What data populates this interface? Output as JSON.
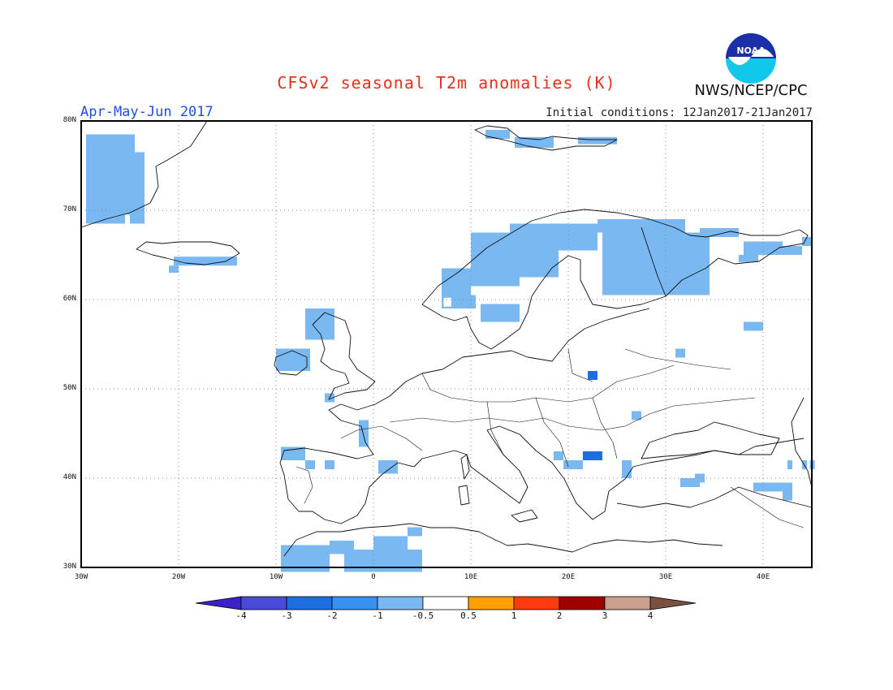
{
  "header": {
    "title": "CFSv2 seasonal T2m anomalies (K)",
    "season": "Apr-May-Jun 2017",
    "initial_conditions": "Initial conditions: 12Jan2017-21Jan2017",
    "agency": "NWS/NCEP/CPC",
    "logo_text": "NOAA",
    "logo_icon": "noaa-logo-icon"
  },
  "map": {
    "projection": "lat-lon",
    "lon_range": [
      -30,
      45
    ],
    "lat_range": [
      30,
      80
    ],
    "lat_labels": [
      "80N",
      "70N",
      "60N",
      "50N",
      "40N",
      "30N"
    ],
    "lon_labels": [
      "30W",
      "20W",
      "10W",
      "0",
      "10E",
      "20E",
      "30E",
      "40E"
    ],
    "grid": "dotted"
  },
  "anomaly_cells": [
    {
      "lon": -29.5,
      "lat": 78.5,
      "w": 5,
      "h": 9,
      "bin": 4
    },
    {
      "lon": -29.5,
      "lat": 69.5,
      "w": 4,
      "h": 1,
      "bin": 4
    },
    {
      "lon": -25,
      "lat": 76.5,
      "w": 1.5,
      "h": 8,
      "bin": 4
    },
    {
      "lon": -23.5,
      "lat": 66.0,
      "w": 1.5,
      "h": 0.5,
      "bin": 5
    },
    {
      "lon": -20,
      "lat": 65.8,
      "w": 6,
      "h": 1,
      "bin": 5
    },
    {
      "lon": -20.5,
      "lat": 64.8,
      "w": 6.5,
      "h": 1.0,
      "bin": 4
    },
    {
      "lon": -21,
      "lat": 63.8,
      "w": 1,
      "h": 0.8,
      "bin": 4
    },
    {
      "lon": -7,
      "lat": 59.0,
      "w": 3,
      "h": 3.5,
      "bin": 4
    },
    {
      "lon": -10,
      "lat": 54.5,
      "w": 3.5,
      "h": 2.5,
      "bin": 4
    },
    {
      "lon": 7,
      "lat": 63.5,
      "w": 3,
      "h": 3.5,
      "bin": 4
    },
    {
      "lon": 10,
      "lat": 67.5,
      "w": 5,
      "h": 6,
      "bin": 4
    },
    {
      "lon": 14,
      "lat": 68.5,
      "w": 9,
      "h": 3,
      "bin": 4
    },
    {
      "lon": 15,
      "lat": 65.5,
      "w": 4,
      "h": 3,
      "bin": 4
    },
    {
      "lon": 23,
      "lat": 69.0,
      "w": 9,
      "h": 1.5,
      "bin": 4
    },
    {
      "lon": 23.5,
      "lat": 67.5,
      "w": 11,
      "h": 7,
      "bin": 4
    },
    {
      "lon": 33.5,
      "lat": 68.0,
      "w": 4,
      "h": 1,
      "bin": 4
    },
    {
      "lon": 7,
      "lat": 60.5,
      "w": 3.5,
      "h": 1.5,
      "bin": 4
    },
    {
      "lon": 7.2,
      "lat": 60.2,
      "w": 0.8,
      "h": 1.0,
      "bin": 5
    },
    {
      "lon": 11,
      "lat": 59.5,
      "w": 4,
      "h": 2,
      "bin": 4
    },
    {
      "lon": 11.5,
      "lat": 79.0,
      "w": 2.5,
      "h": 1,
      "bin": 4
    },
    {
      "lon": 14.5,
      "lat": 78.2,
      "w": 4,
      "h": 1.2,
      "bin": 4
    },
    {
      "lon": 21,
      "lat": 78.2,
      "w": 4,
      "h": 0.8,
      "bin": 4
    },
    {
      "lon": 38,
      "lat": 66.5,
      "w": 4,
      "h": 1.5,
      "bin": 4
    },
    {
      "lon": 42,
      "lat": 66.0,
      "w": 2,
      "h": 1,
      "bin": 4
    },
    {
      "lon": 44,
      "lat": 67.0,
      "w": 1,
      "h": 1,
      "bin": 4
    },
    {
      "lon": 37.5,
      "lat": 65.0,
      "w": 2,
      "h": 0.8,
      "bin": 4
    },
    {
      "lon": 38,
      "lat": 57.5,
      "w": 2,
      "h": 1,
      "bin": 4
    },
    {
      "lon": 31,
      "lat": 54.5,
      "w": 1,
      "h": 1,
      "bin": 4
    },
    {
      "lon": -5,
      "lat": 49.5,
      "w": 1,
      "h": 1,
      "bin": 4
    },
    {
      "lon": 26.5,
      "lat": 47.5,
      "w": 1,
      "h": 1,
      "bin": 4
    },
    {
      "lon": -1.5,
      "lat": 46.5,
      "w": 1,
      "h": 3,
      "bin": 4
    },
    {
      "lon": -9.5,
      "lat": 43.5,
      "w": 2.5,
      "h": 1.5,
      "bin": 4
    },
    {
      "lon": -7,
      "lat": 42.0,
      "w": 1,
      "h": 1,
      "bin": 4
    },
    {
      "lon": -5,
      "lat": 42.0,
      "w": 1,
      "h": 1,
      "bin": 4
    },
    {
      "lon": 0.5,
      "lat": 42.0,
      "w": 2,
      "h": 1.5,
      "bin": 4
    },
    {
      "lon": 18.5,
      "lat": 43.0,
      "w": 1,
      "h": 1,
      "bin": 4
    },
    {
      "lon": 19.5,
      "lat": 42.0,
      "w": 2,
      "h": 1,
      "bin": 4
    },
    {
      "lon": 25.5,
      "lat": 42.0,
      "w": 1,
      "h": 2,
      "bin": 4
    },
    {
      "lon": 31.5,
      "lat": 40.0,
      "w": 2,
      "h": 1,
      "bin": 4
    },
    {
      "lon": 33,
      "lat": 40.5,
      "w": 1,
      "h": 1,
      "bin": 4
    },
    {
      "lon": 39,
      "lat": 39.5,
      "w": 4,
      "h": 1,
      "bin": 4
    },
    {
      "lon": 42,
      "lat": 39.0,
      "w": 1,
      "h": 1.5,
      "bin": 4
    },
    {
      "lon": 42.5,
      "lat": 42.0,
      "w": 2,
      "h": 1,
      "bin": 4
    },
    {
      "lon": 43,
      "lat": 42.0,
      "w": 1,
      "h": 1,
      "bin": 5
    },
    {
      "lon": 44.8,
      "lat": 42.0,
      "w": 0.5,
      "h": 1,
      "bin": 4
    },
    {
      "lon": -9.5,
      "lat": 32.5,
      "w": 5,
      "h": 3,
      "bin": 4
    },
    {
      "lon": -4.5,
      "lat": 33.0,
      "w": 2.5,
      "h": 1.5,
      "bin": 4
    },
    {
      "lon": -3,
      "lat": 32.0,
      "w": 8,
      "h": 2.5,
      "bin": 4
    },
    {
      "lon": 0,
      "lat": 33.5,
      "w": 3.5,
      "h": 1.5,
      "bin": 4
    },
    {
      "lon": 3.5,
      "lat": 34.5,
      "w": 1.5,
      "h": 1,
      "bin": 4
    },
    {
      "lon": 22,
      "lat": 52.0,
      "w": 1,
      "h": 1,
      "bin": 2
    },
    {
      "lon": 21.5,
      "lat": 43.0,
      "w": 2,
      "h": 1,
      "bin": 2
    }
  ],
  "colorbar": {
    "ticks": [
      "-4",
      "-3",
      "-2",
      "-1",
      "-0.5",
      "0.5",
      "1",
      "2",
      "3",
      "4"
    ],
    "colors": [
      "#3a22c8",
      "#4a4ad8",
      "#1e6ee0",
      "#3a90ee",
      "#7ab8f2",
      "#ffffff",
      "#ffa000",
      "#ff3a10",
      "#a00000",
      "#c8a08c",
      "#7a5040"
    ]
  }
}
